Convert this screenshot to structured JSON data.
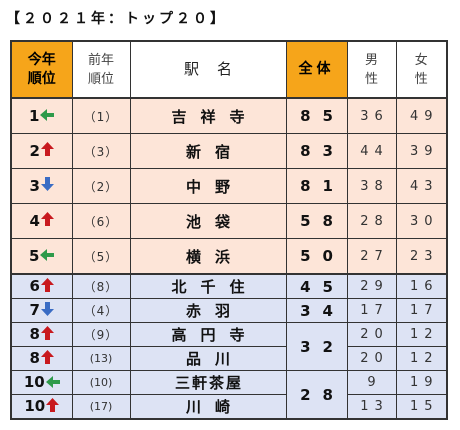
{
  "title": "【２０２１年：トップ２０】",
  "header": {
    "rank_line1": "今年",
    "rank_line2": "順位",
    "prev_line1": "前年",
    "prev_line2": "順位",
    "station": "駅名",
    "total": "全体",
    "male_line1": "男",
    "male_line2": "性",
    "female_line1": "女",
    "female_line2": "性"
  },
  "colors": {
    "header_highlight": "#f6a51a",
    "group_a_bg": "#fde5d8",
    "group_b_bg": "#dde3f4",
    "arrow_up": "#c8191e",
    "arrow_down": "#3a6cc4",
    "arrow_same": "#2e9a4a"
  },
  "rows": [
    {
      "rank": "1",
      "change": "same",
      "prev": "（1）",
      "station": "吉祥寺",
      "total": "85",
      "male": "36",
      "female": "49"
    },
    {
      "rank": "2",
      "change": "up",
      "prev": "（3）",
      "station": "新宿",
      "total": "83",
      "male": "44",
      "female": "39"
    },
    {
      "rank": "3",
      "change": "down",
      "prev": "（2）",
      "station": "中野",
      "total": "81",
      "male": "38",
      "female": "43"
    },
    {
      "rank": "4",
      "change": "up",
      "prev": "（6）",
      "station": "池袋",
      "total": "58",
      "male": "28",
      "female": "30"
    },
    {
      "rank": "5",
      "change": "same",
      "prev": "（5）",
      "station": "横浜",
      "total": "50",
      "male": "27",
      "female": "23"
    },
    {
      "rank": "6",
      "change": "up",
      "prev": "（8）",
      "station": "北千住",
      "total": "45",
      "male": "29",
      "female": "16"
    },
    {
      "rank": "7",
      "change": "down",
      "prev": "（4）",
      "station": "赤羽",
      "total": "34",
      "male": "17",
      "female": "17"
    },
    {
      "rank": "8",
      "change": "up",
      "prev": "（9）",
      "station": "高円寺",
      "total": "32",
      "male": "20",
      "female": "12"
    },
    {
      "rank": "8",
      "change": "up",
      "prev": "(13)",
      "station": "品川",
      "total": "",
      "male": "20",
      "female": "12"
    },
    {
      "rank": "10",
      "change": "same",
      "prev": "(10)",
      "station": "三軒茶屋",
      "total": "28",
      "male": "9",
      "female": "19"
    },
    {
      "rank": "10",
      "change": "up",
      "prev": "(17)",
      "station": "川崎",
      "total": "",
      "male": "13",
      "female": "15"
    }
  ]
}
